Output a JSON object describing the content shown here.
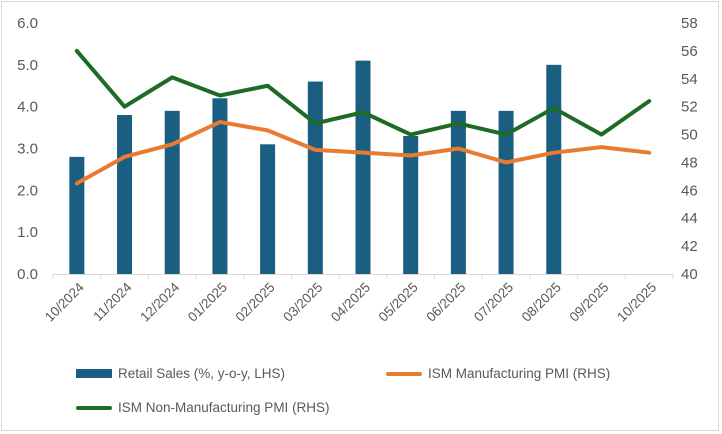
{
  "chart_data": {
    "type": "bar+line",
    "categories": [
      "10/2024",
      "11/2024",
      "12/2024",
      "01/2025",
      "02/2025",
      "03/2025",
      "04/2025",
      "05/2025",
      "06/2025",
      "07/2025",
      "08/2025",
      "09/2025",
      "10/2025"
    ],
    "series": [
      {
        "name": "Retail Sales (%, y-o-y, LHS)",
        "type": "bar",
        "axis": "left",
        "color": "#1a5e82",
        "values": [
          2.8,
          3.8,
          3.9,
          4.2,
          3.1,
          4.6,
          5.1,
          3.3,
          3.9,
          3.9,
          5.0,
          null,
          null
        ]
      },
      {
        "name": "ISM Manufacturing PMI (RHS)",
        "type": "line",
        "axis": "right",
        "color": "#e97a32",
        "values": [
          46.5,
          48.4,
          49.3,
          50.9,
          50.3,
          48.9,
          48.7,
          48.5,
          49.0,
          48.0,
          48.7,
          49.1,
          48.7
        ]
      },
      {
        "name": "ISM Non-Manufacturing PMI (RHS)",
        "type": "line",
        "axis": "right",
        "color": "#1e6b26",
        "values": [
          56.0,
          52.0,
          54.1,
          52.8,
          53.5,
          50.8,
          51.6,
          50.0,
          50.8,
          50.0,
          51.9,
          50.0,
          52.4
        ]
      }
    ],
    "left_axis": {
      "ylim": [
        0,
        6
      ],
      "ticks": [
        "0.0",
        "1.0",
        "2.0",
        "3.0",
        "4.0",
        "5.0",
        "6.0"
      ]
    },
    "right_axis": {
      "ylim": [
        40,
        58
      ],
      "ticks": [
        "40",
        "42",
        "44",
        "46",
        "48",
        "50",
        "52",
        "54",
        "56",
        "58"
      ]
    },
    "grid": false,
    "legend": "bottom"
  }
}
